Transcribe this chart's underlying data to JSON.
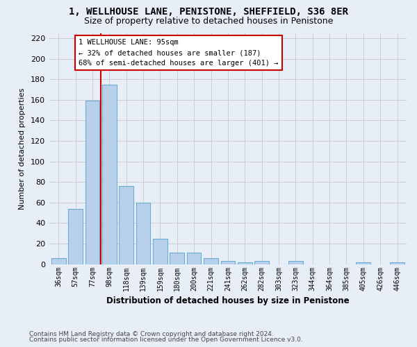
{
  "title1": "1, WELLHOUSE LANE, PENISTONE, SHEFFIELD, S36 8ER",
  "title2": "Size of property relative to detached houses in Penistone",
  "xlabel": "Distribution of detached houses by size in Penistone",
  "ylabel": "Number of detached properties",
  "categories": [
    "36sqm",
    "57sqm",
    "77sqm",
    "98sqm",
    "118sqm",
    "139sqm",
    "159sqm",
    "180sqm",
    "200sqm",
    "221sqm",
    "241sqm",
    "262sqm",
    "282sqm",
    "303sqm",
    "323sqm",
    "344sqm",
    "364sqm",
    "385sqm",
    "405sqm",
    "426sqm",
    "446sqm"
  ],
  "values": [
    6,
    54,
    159,
    175,
    76,
    60,
    25,
    11,
    11,
    6,
    3,
    2,
    3,
    0,
    3,
    0,
    0,
    0,
    2,
    0,
    2
  ],
  "bar_color": "#b8d0ea",
  "bar_edge_color": "#6aaed6",
  "vline_color": "#cc0000",
  "annotation_lines": [
    "1 WELLHOUSE LANE: 95sqm",
    "← 32% of detached houses are smaller (187)",
    "68% of semi-detached houses are larger (401) →"
  ],
  "annotation_box_facecolor": "#ffffff",
  "annotation_box_edgecolor": "#cc0000",
  "ylim": [
    0,
    225
  ],
  "yticks": [
    0,
    20,
    40,
    60,
    80,
    100,
    120,
    140,
    160,
    180,
    200,
    220
  ],
  "grid_color": "#cccccc",
  "footer1": "Contains HM Land Registry data © Crown copyright and database right 2024.",
  "footer2": "Contains public sector information licensed under the Open Government Licence v3.0.",
  "bg_color": "#e8eef8"
}
